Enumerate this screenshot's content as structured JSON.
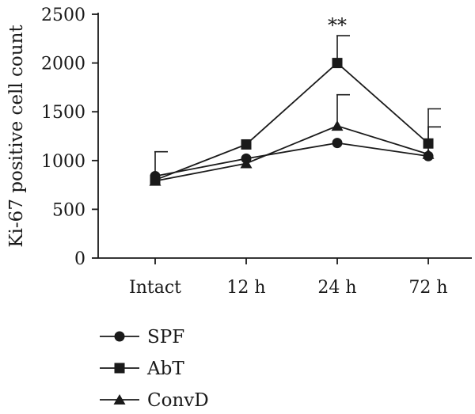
{
  "chart_data": {
    "type": "line",
    "ylabel": "Ki-67 positive cell count",
    "xlabel": "",
    "categories": [
      "Intact",
      "12 h",
      "24 h",
      "72 h"
    ],
    "ylim": [
      0,
      2500
    ],
    "yticks": [
      "0",
      "500",
      "1000",
      "1500",
      "2000",
      "2500"
    ],
    "grid": false,
    "legend_position": "bottom-left",
    "series": [
      {
        "name": "SPF",
        "marker": "circle",
        "values": [
          840,
          1020,
          1180,
          1045
        ],
        "error": [
          0,
          0,
          0,
          0
        ]
      },
      {
        "name": "AbT",
        "marker": "square",
        "values": [
          800,
          1165,
          2000,
          1175
        ],
        "error": [
          0,
          0,
          280,
          355
        ]
      },
      {
        "name": "ConvD",
        "marker": "triangle",
        "values": [
          790,
          970,
          1355,
          1065
        ],
        "error": [
          300,
          0,
          320,
          280
        ]
      }
    ],
    "annotations": [
      {
        "category": "24 h",
        "text": "**"
      }
    ]
  }
}
